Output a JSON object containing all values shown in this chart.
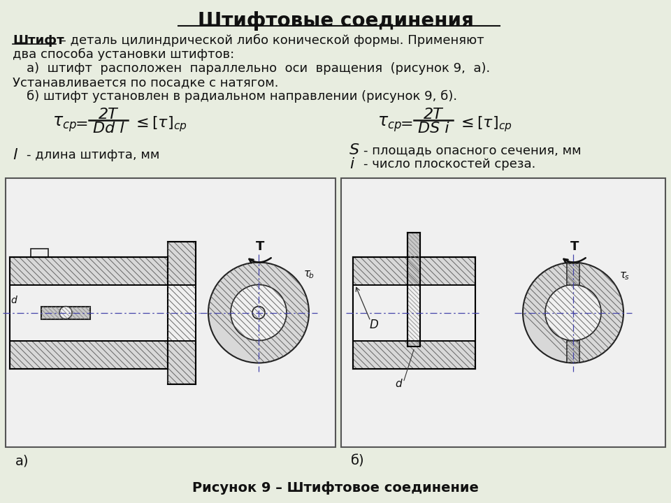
{
  "title": "Штифтовые соединения",
  "bg_color": "#e8ede0",
  "text_color": "#111111",
  "title_fontsize": 20,
  "body_fontsize": 13,
  "caption": "Рисунок 9 – Штифтовое соединение",
  "label_a": "а)",
  "label_b": "б)"
}
